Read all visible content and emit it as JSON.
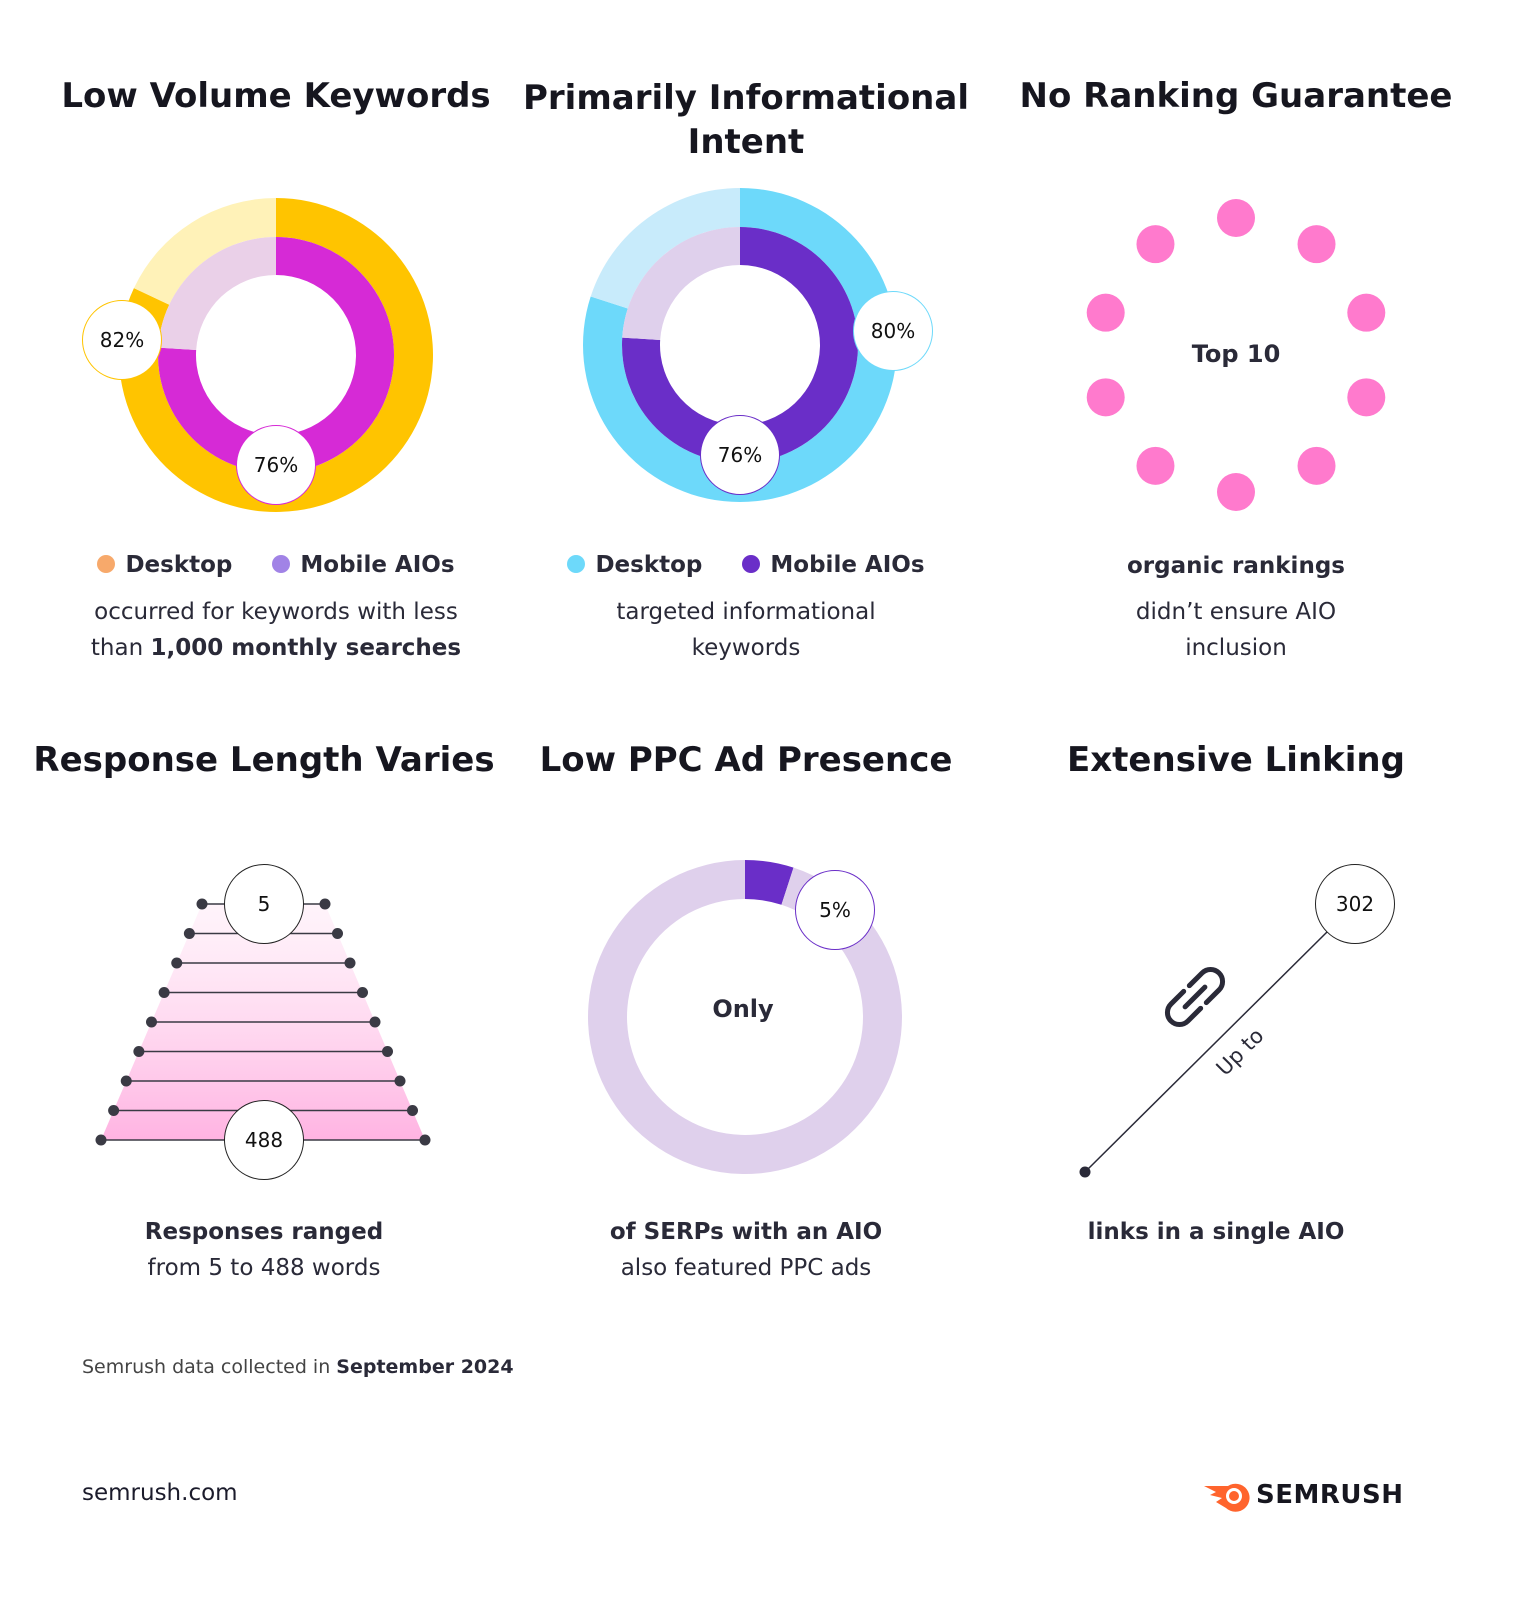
{
  "chart_data": [
    {
      "type": "pie",
      "title": "Low Volume Keywords",
      "series": [
        {
          "name": "Desktop",
          "value": 82,
          "color": "#FFC400",
          "rest_color": "#FFF2B8",
          "label": "82%"
        },
        {
          "name": "Mobile AIOs",
          "value": 76,
          "color": "#D62AD6",
          "rest_color": "#EAD0E8",
          "label": "76%"
        }
      ],
      "legend": [
        "Desktop",
        "Mobile AIOs"
      ],
      "legend_colors": [
        "#F7A96B",
        "#A183E6"
      ],
      "caption_pre": "occurred for keywords with less than ",
      "caption_bold": "1,000 monthly searches"
    },
    {
      "type": "pie",
      "title": "Primarily Informational Intent",
      "series": [
        {
          "name": "Desktop",
          "value": 80,
          "color": "#6DD9FA",
          "rest_color": "#C8EBFB",
          "label": "80%"
        },
        {
          "name": "Mobile AIOs",
          "value": 76,
          "color": "#6A2EC8",
          "rest_color": "#DFD0EC",
          "label": "76%"
        }
      ],
      "legend": [
        "Desktop",
        "Mobile AIOs"
      ],
      "legend_colors": [
        "#6DD9FA",
        "#6A2EC8"
      ],
      "caption": "targeted informational keywords"
    },
    {
      "type": "other",
      "title": "No Ranking Guarantee",
      "center_label": "Top 10",
      "dots": 10,
      "dot_color": "#FF7ACD",
      "caption_bold": "organic rankings",
      "caption": "didn’t ensure AIO inclusion"
    },
    {
      "type": "other",
      "title": "Response Length Varies",
      "min": 5,
      "max": 488,
      "min_label": "5",
      "max_label": "488",
      "caption_bold": "Responses ranged",
      "caption": "from 5 to 488 words"
    },
    {
      "type": "pie",
      "title": "Low PPC Ad Presence",
      "value": 5,
      "label": "5%",
      "color": "#6A2EC8",
      "rest_color": "#DFD0EC",
      "center_label": "Only",
      "caption_bold": "of SERPs with an AIO",
      "caption": "also featured PPC ads"
    },
    {
      "type": "other",
      "title": "Extensive Linking",
      "value": 302,
      "label": "302",
      "line_label": "Up to",
      "caption_bold": "links in a single AIO"
    }
  ],
  "footer": {
    "source_pre": "Semrush data collected in ",
    "source_bold": "September 2024",
    "site": "semrush.com",
    "logo": "SEMRUSH",
    "logo_color": "#FF642D"
  }
}
